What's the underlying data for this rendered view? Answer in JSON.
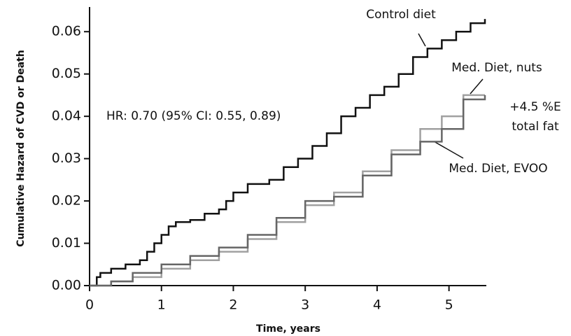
{
  "chart_data": {
    "type": "step",
    "x_label": "Time, years",
    "y_label": "Cumulative Hazard of CVD or Death",
    "annotations": [
      "HR: 0.70  (95% CI: 0.55, 0.89)",
      "+4.5 %E",
      "total fat"
    ],
    "xlim": [
      0,
      5.5
    ],
    "ylim": [
      0,
      0.065
    ],
    "xticks": [
      0,
      1,
      2,
      3,
      4,
      5
    ],
    "yticks": [
      {
        "value": 0,
        "label": "0.00"
      },
      0.01,
      0.02,
      0.03,
      0.04,
      0.05,
      0.06
    ],
    "series": [
      {
        "name": "Control diet",
        "color": "#111111",
        "x": [
          0,
          0.1,
          0.15,
          0.3,
          0.5,
          0.7,
          0.8,
          0.9,
          1.0,
          1.1,
          1.2,
          1.4,
          1.6,
          1.8,
          1.9,
          2.0,
          2.2,
          2.5,
          2.7,
          2.9,
          3.1,
          3.3,
          3.5,
          3.7,
          3.9,
          4.1,
          4.3,
          4.5,
          4.7,
          4.9,
          5.1,
          5.3,
          5.5
        ],
        "values": [
          0,
          0.002,
          0.003,
          0.004,
          0.005,
          0.006,
          0.008,
          0.01,
          0.012,
          0.014,
          0.015,
          0.0155,
          0.017,
          0.018,
          0.02,
          0.022,
          0.024,
          0.025,
          0.028,
          0.03,
          0.033,
          0.036,
          0.04,
          0.042,
          0.045,
          0.047,
          0.05,
          0.054,
          0.056,
          0.058,
          0.06,
          0.062,
          0.063
        ]
      },
      {
        "name": "Med. Diet, nuts",
        "color": "#a0a0a0",
        "x": [
          0,
          0.3,
          0.6,
          1.0,
          1.4,
          1.8,
          2.2,
          2.6,
          3.0,
          3.4,
          3.8,
          4.2,
          4.6,
          4.9,
          5.2,
          5.5
        ],
        "values": [
          0,
          0.001,
          0.002,
          0.004,
          0.006,
          0.008,
          0.011,
          0.015,
          0.019,
          0.022,
          0.027,
          0.032,
          0.037,
          0.04,
          0.045,
          0.045
        ]
      },
      {
        "name": "Med. Diet, EVOO",
        "color": "#666666",
        "x": [
          0,
          0.3,
          0.6,
          1.0,
          1.4,
          1.8,
          2.2,
          2.6,
          3.0,
          3.4,
          3.8,
          4.2,
          4.6,
          4.9,
          5.2,
          5.5
        ],
        "values": [
          0,
          0.001,
          0.003,
          0.005,
          0.007,
          0.009,
          0.012,
          0.016,
          0.02,
          0.021,
          0.026,
          0.031,
          0.034,
          0.037,
          0.044,
          0.045
        ]
      }
    ]
  }
}
